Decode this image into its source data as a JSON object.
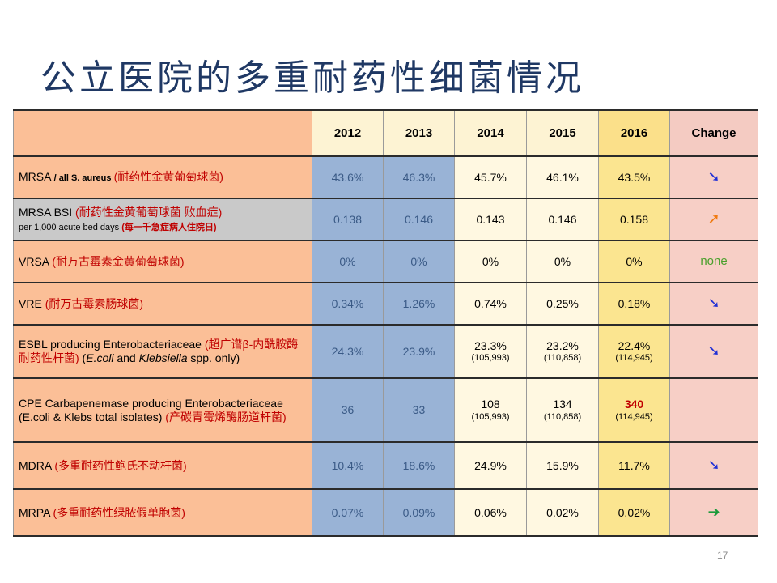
{
  "title": "公立医院的多重耐药性细菌情况",
  "page_number": "17",
  "columns": [
    "2012",
    "2013",
    "2014",
    "2015",
    "2016",
    "Change"
  ],
  "rows": [
    {
      "label_a": "MRSA ",
      "label_b": "/ all S. aureus ",
      "label_c": "(耐药性金黄葡萄球菌)",
      "values": [
        "43.6%",
        "46.3%",
        "45.7%",
        "46.1%",
        "43.5%"
      ],
      "change_icon": "arrow-down-right-icon",
      "change_glyph": "➘"
    },
    {
      "label_a": "MRSA BSI ",
      "label_c": "(耐药性金黄葡萄球菌 败血症)",
      "label_sub": "per 1,000 acute bed days ",
      "label_sub_cn": "(每一千急症病人住院日)",
      "values": [
        "0.138",
        "0.146",
        "0.143",
        "0.146",
        "0.158"
      ],
      "change_icon": "arrow-up-right-icon",
      "change_glyph": "➚"
    },
    {
      "label_a": "VRSA ",
      "label_c": "(耐万古霉素金黄葡萄球菌)",
      "values": [
        "0%",
        "0%",
        "0%",
        "0%",
        "0%"
      ],
      "change_text": "none"
    },
    {
      "label_a": "VRE ",
      "label_c": "(耐万古霉素肠球菌)",
      "values": [
        "0.34%",
        "1.26%",
        "0.74%",
        "0.25%",
        "0.18%"
      ],
      "change_icon": "arrow-down-right-icon",
      "change_glyph": "➘"
    },
    {
      "label_a": "ESBL producing Enterobacteriaceae ",
      "label_c": "(超广谱β-内酰胺酶耐药性杆菌)",
      "label_d": " (",
      "label_e": "E.coli",
      "label_f": " and ",
      "label_g": "Klebsiella",
      "label_h": " spp. only)",
      "values": [
        "24.3%",
        "23.9%",
        "23.3%",
        "23.2%",
        "22.4%"
      ],
      "subvalues": [
        "(105,993)",
        "(110,858)",
        "(114,945)"
      ],
      "change_icon": "arrow-down-right-icon",
      "change_glyph": "➘"
    },
    {
      "label_a": "CPE Carbapenemase producing Enterobacteriaceae (E.coli & Klebs total isolates) ",
      "label_c": "(产碳青霉烯酶肠道杆菌)",
      "values": [
        "36",
        "33",
        "108",
        "134",
        "340"
      ],
      "subvalues": [
        "(105,993)",
        "(110,858)",
        "(114,945)"
      ]
    },
    {
      "label_a": "MDRA ",
      "label_c": "(多重耐药性鲍氏不动杆菌)",
      "values": [
        "10.4%",
        "18.6%",
        "24.9%",
        "15.9%",
        "11.7%"
      ],
      "change_icon": "arrow-down-right-icon",
      "change_glyph": "➘"
    },
    {
      "label_a": "MRPA ",
      "label_c": "(多重耐药性绿脓假单胞菌)",
      "values": [
        "0.07%",
        "0.09%",
        "0.06%",
        "0.02%",
        "0.02%"
      ],
      "change_icon": "arrow-right-icon",
      "change_glyph": "➔"
    }
  ],
  "colors": {
    "title": "#1f3864",
    "label_bg": "#fbbf97",
    "blue_cells": "#99b3d6",
    "cream_cells": "#fff8e1",
    "yellow_2016": "#fbe590",
    "change_bg": "#f7cfc6",
    "arrow_down": "#1f2fd6",
    "arrow_up": "#f07a10",
    "arrow_flat": "#1a9a3a",
    "highlight_red": "#c00000"
  }
}
